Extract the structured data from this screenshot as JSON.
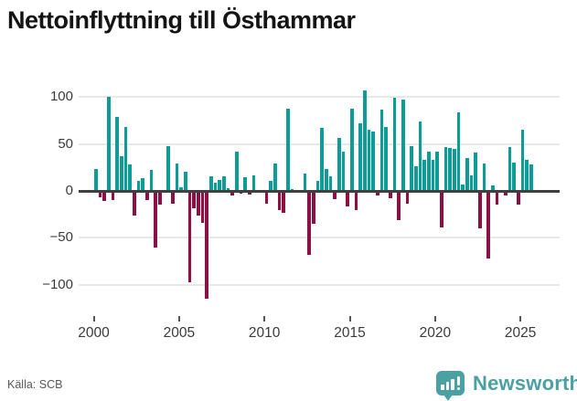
{
  "title": "Nettoinflyttning till Östhammar",
  "source": "Källa: SCB",
  "brand": {
    "name": "Newsworthy"
  },
  "colors": {
    "positive": "#0d9d96",
    "negative": "#8c1045",
    "grid": "#e8e8e8",
    "zero_line": "#3f3f3f",
    "brand_teal": "#4ba0a1",
    "title_text": "#141414",
    "axis_text": "#3a3a3a"
  },
  "chart_data": {
    "type": "bar",
    "title": "Nettoinflyttning till Östhammar",
    "xlabel": "",
    "ylabel": "",
    "frequency": "quarterly",
    "start_period": "2000Q1",
    "end_period": "2025Q3",
    "ylim": [
      -125,
      118
    ],
    "grid": true,
    "legend_position": "none",
    "y_tick_values": [
      100,
      50,
      0,
      -50,
      -100
    ],
    "y_tick_labels": [
      "100",
      "50",
      "0",
      "−50",
      "−100"
    ],
    "x_tick_years": [
      2000,
      2005,
      2010,
      2015,
      2020,
      2025
    ],
    "x_tick_labels": [
      "2000",
      "2005",
      "2010",
      "2015",
      "2020",
      "2025"
    ],
    "series": [
      {
        "name": "Nettoinflyttning",
        "values": [
          23,
          -7,
          -11,
          100,
          -10,
          79,
          37,
          68,
          28,
          -26,
          11,
          14,
          -10,
          22,
          -60,
          -15,
          0,
          48,
          -14,
          29,
          4,
          20,
          -97,
          -18,
          -26,
          -34,
          -115,
          16,
          9,
          12,
          16,
          3,
          -5,
          42,
          -3,
          15,
          -4,
          17,
          0,
          0,
          -14,
          11,
          29,
          -20,
          -23,
          88,
          2,
          0,
          0,
          18,
          -68,
          -35,
          11,
          67,
          23,
          16,
          -9,
          56,
          42,
          -17,
          88,
          -20,
          72,
          107,
          65,
          63,
          -5,
          87,
          68,
          -8,
          99,
          -31,
          97,
          -14,
          48,
          26,
          74,
          33,
          42,
          33,
          42,
          -39,
          47,
          46,
          45,
          84,
          7,
          35,
          17,
          41,
          -40,
          29,
          -72,
          6,
          -15,
          0,
          -5,
          47,
          30,
          -15,
          65,
          33,
          28
        ]
      }
    ]
  }
}
